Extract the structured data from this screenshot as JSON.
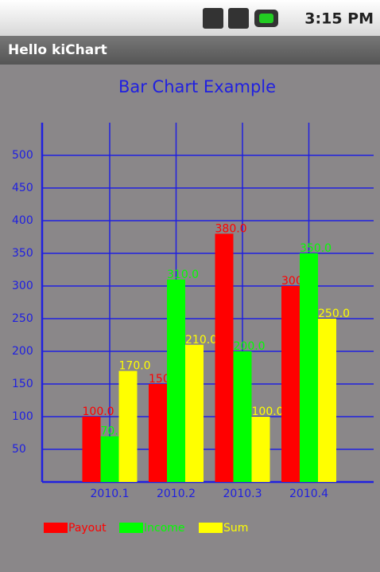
{
  "status_bar": {
    "time": "3:15 PM"
  },
  "app_bar": {
    "title": "Hello kiChart"
  },
  "chart_data": {
    "type": "bar",
    "title": "Bar Chart Example",
    "categories": [
      "2010.1",
      "2010.2",
      "2010.3",
      "2010.4"
    ],
    "series": [
      {
        "name": "Payout",
        "color": "#ff0000",
        "values": [
          100,
          150,
          380,
          300
        ],
        "value_labels": [
          "100.0",
          "150.0",
          "380.0",
          "300.0"
        ]
      },
      {
        "name": "Income",
        "color": "#00ff00",
        "values": [
          70,
          310,
          200,
          350
        ],
        "value_labels": [
          "70.0",
          "310.0",
          "200.0",
          "350.0"
        ]
      },
      {
        "name": "Sum",
        "color": "#ffff00",
        "values": [
          170,
          210,
          100,
          250
        ],
        "value_labels": [
          "170.0",
          "210.0",
          "100.0",
          "250.0"
        ]
      }
    ],
    "ylim": [
      0,
      550
    ],
    "yticks": [
      50,
      100,
      150,
      200,
      250,
      300,
      350,
      400,
      450,
      500
    ],
    "grid": true,
    "legend": "bottom"
  }
}
